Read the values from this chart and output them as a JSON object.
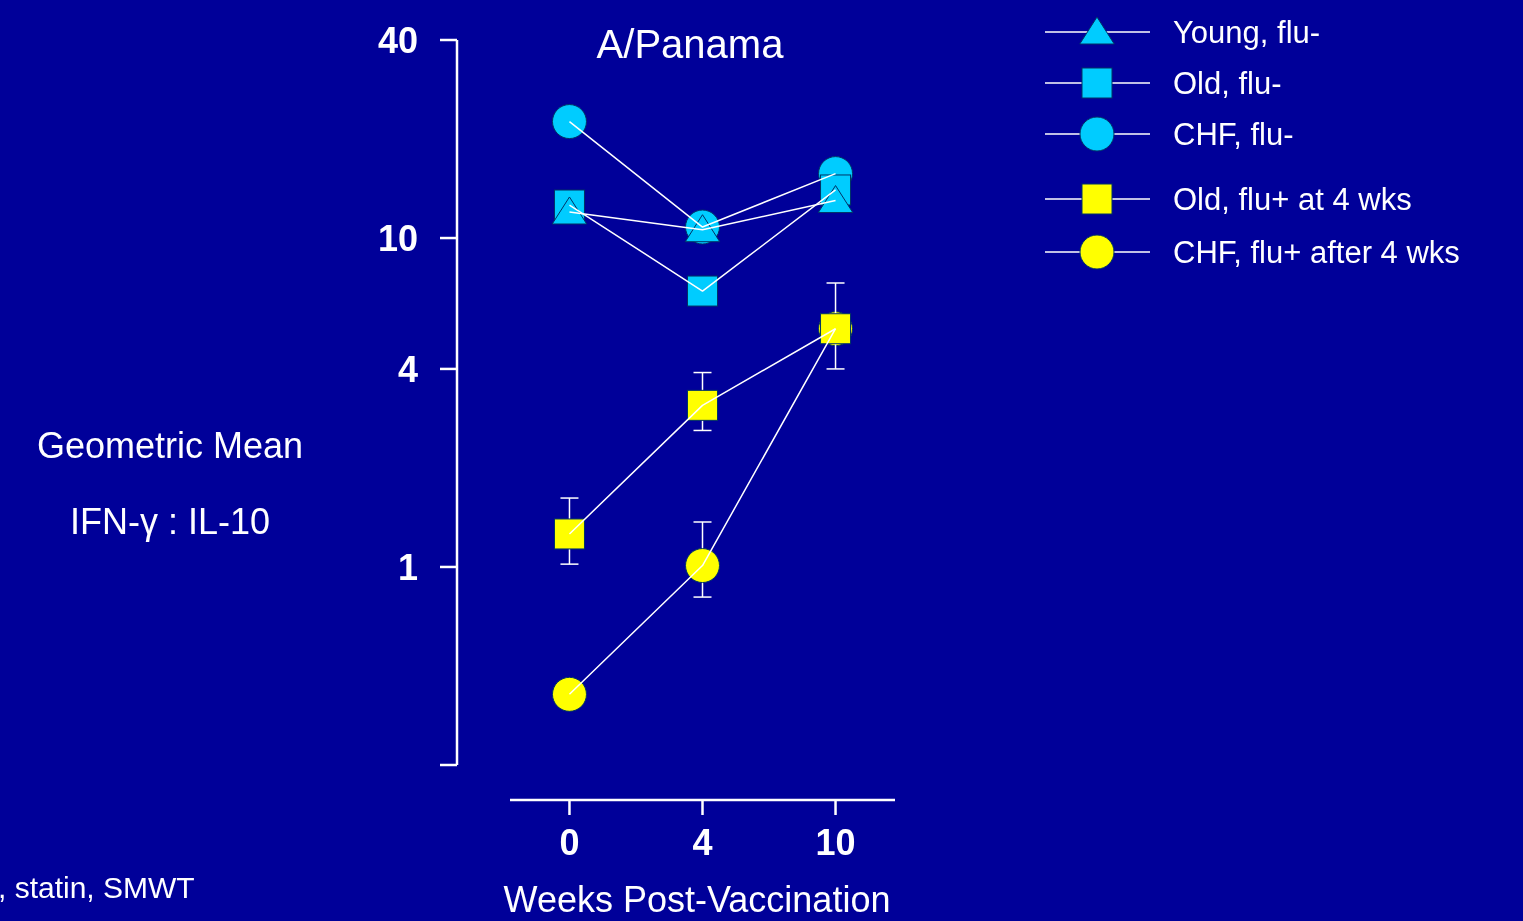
{
  "chart_data": {
    "type": "line",
    "title": "A/Panama",
    "xlabel": "Weeks Post-Vaccination",
    "ylabel": "Geometric Mean\nIFN-γ : IL-10",
    "categories": [
      "0",
      "4",
      "10"
    ],
    "log": true,
    "ylim": [
      0.25,
      40
    ],
    "yticks": [
      1,
      4,
      10,
      40
    ],
    "grid": false,
    "legend": "top right",
    "series": [
      {
        "name": "Young, flu-",
        "color": "#00ccff",
        "marker": "triangle",
        "values": [
          12.0,
          10.6,
          13.0
        ]
      },
      {
        "name": "Old, flu-",
        "color": "#00ccff",
        "marker": "square",
        "values": [
          12.6,
          6.9,
          14.0
        ]
      },
      {
        "name": "CHF, flu-",
        "color": "#00ccff",
        "marker": "circle",
        "values": [
          22.6,
          10.8,
          15.7
        ]
      },
      {
        "name": "Old, flu+ at 4 wks",
        "color": "#ffff00",
        "marker": "square",
        "values": [
          1.26,
          3.1,
          5.3
        ],
        "errors": [
          [
            1.02,
            1.62
          ],
          [
            2.6,
            3.9
          ],
          [
            4.0,
            7.3
          ]
        ]
      },
      {
        "name": "CHF, flu+ after 4 wks",
        "color": "#ffff00",
        "marker": "circle",
        "values": [
          0.41,
          1.01,
          5.3
        ],
        "errors": [
          null,
          [
            0.81,
            1.37
          ],
          null
        ]
      }
    ],
    "annotations": [
      ", statin, SMWT"
    ]
  }
}
